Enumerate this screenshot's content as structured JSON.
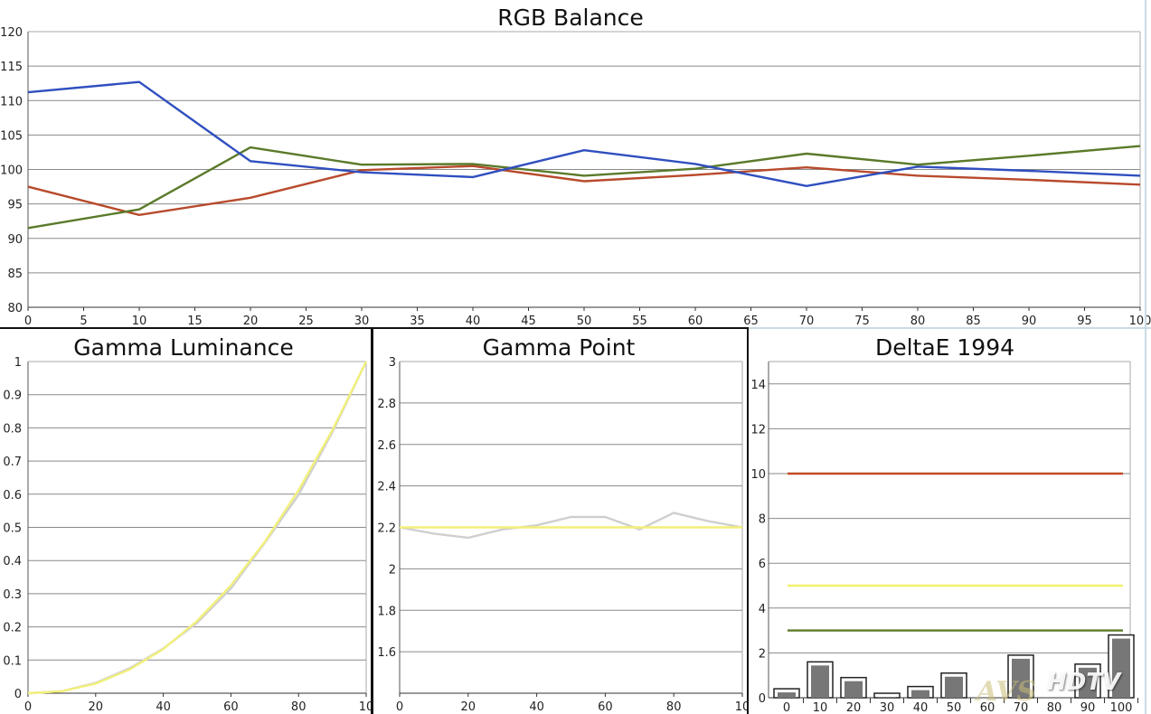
{
  "chart_data": [
    {
      "type": "line",
      "title": "RGB Balance",
      "xlim": [
        0,
        100
      ],
      "ylim": [
        80,
        120
      ],
      "x_ticks": [
        "0",
        "5",
        "10",
        "15",
        "20",
        "25",
        "30",
        "35",
        "40",
        "45",
        "50",
        "55",
        "60",
        "65",
        "70",
        "75",
        "80",
        "85",
        "90",
        "95",
        "100"
      ],
      "y_ticks": [
        "80",
        "85",
        "90",
        "95",
        "100",
        "105",
        "110",
        "115",
        "120"
      ],
      "grid": true,
      "x": [
        0,
        10,
        20,
        30,
        40,
        50,
        60,
        70,
        80,
        90,
        100
      ],
      "series": [
        {
          "color": "#2f4fbf",
          "values": [
            111.2,
            112.7,
            101.2,
            99.6,
            98.9,
            102.8,
            100.8,
            97.6,
            100.4,
            99.8,
            99.1
          ]
        },
        {
          "color": "#5a7a2a",
          "values": [
            91.5,
            94.2,
            103.2,
            100.7,
            100.8,
            99.1,
            100.1,
            102.3,
            100.7,
            102.0,
            103.4
          ]
        },
        {
          "color": "#b84a2c",
          "values": [
            97.5,
            93.4,
            95.9,
            99.9,
            100.5,
            98.3,
            99.2,
            100.3,
            99.1,
            98.5,
            97.8
          ]
        }
      ]
    },
    {
      "type": "line",
      "title": "Gamma Luminance",
      "xlim": [
        0,
        100
      ],
      "ylim": [
        0,
        1
      ],
      "x_ticks": [
        "0",
        "20",
        "40",
        "60",
        "80",
        "10"
      ],
      "y_ticks": [
        "0",
        "0.1",
        "0.2",
        "0.3",
        "0.4",
        "0.5",
        "0.6",
        "0.7",
        "0.8",
        "0.9",
        "1"
      ],
      "grid": true,
      "x": [
        0,
        10,
        20,
        30,
        40,
        50,
        60,
        70,
        80,
        90,
        100
      ],
      "series": [
        {
          "color": "#f2f07a",
          "values": [
            0.0,
            0.006,
            0.029,
            0.071,
            0.133,
            0.218,
            0.325,
            0.456,
            0.612,
            0.793,
            1.0
          ]
        },
        {
          "color": "#cfcfcf",
          "values": [
            0.0,
            0.006,
            0.031,
            0.075,
            0.135,
            0.212,
            0.316,
            0.453,
            0.598,
            0.787,
            1.0
          ]
        }
      ]
    },
    {
      "type": "line",
      "title": "Gamma Point",
      "xlim": [
        0,
        100
      ],
      "ylim": [
        1.4,
        3
      ],
      "x_ticks": [
        "0",
        "20",
        "40",
        "60",
        "80",
        "10"
      ],
      "y_ticks": [
        "1.6",
        "1.8",
        "2",
        "2.2",
        "2.4",
        "2.6",
        "2.8",
        "3"
      ],
      "grid": true,
      "x": [
        0,
        10,
        20,
        30,
        40,
        50,
        60,
        70,
        80,
        90,
        100
      ],
      "series": [
        {
          "color": "#f2f07a",
          "values": [
            2.2,
            2.2,
            2.2,
            2.2,
            2.2,
            2.2,
            2.2,
            2.2,
            2.2,
            2.2,
            2.2
          ]
        },
        {
          "color": "#cfcfcf",
          "values": [
            2.2,
            2.17,
            2.15,
            2.19,
            2.21,
            2.25,
            2.25,
            2.19,
            2.27,
            2.23,
            2.2
          ]
        }
      ]
    },
    {
      "type": "bar",
      "title": "DeltaE 1994",
      "ylim": [
        0,
        15
      ],
      "categories": [
        "0",
        "10",
        "20",
        "30",
        "40",
        "50",
        "60",
        "70",
        "80",
        "90",
        "100"
      ],
      "y_ticks": [
        "0",
        "2",
        "4",
        "6",
        "8",
        "10",
        "12",
        "14"
      ],
      "grid": true,
      "values": [
        0.4,
        1.6,
        0.9,
        0.2,
        0.5,
        1.1,
        0.0,
        1.9,
        0.0,
        1.5,
        2.8
      ],
      "bar_fill": "#777777",
      "bar_outline": "#222222",
      "thresholds": [
        {
          "value": 10,
          "color": "#c24a25"
        },
        {
          "value": 5,
          "color": "#f5f06c"
        },
        {
          "value": 3,
          "color": "#5b7a2a"
        }
      ]
    }
  ],
  "watermark": {
    "left": "AVS",
    "right": "HDTV"
  }
}
